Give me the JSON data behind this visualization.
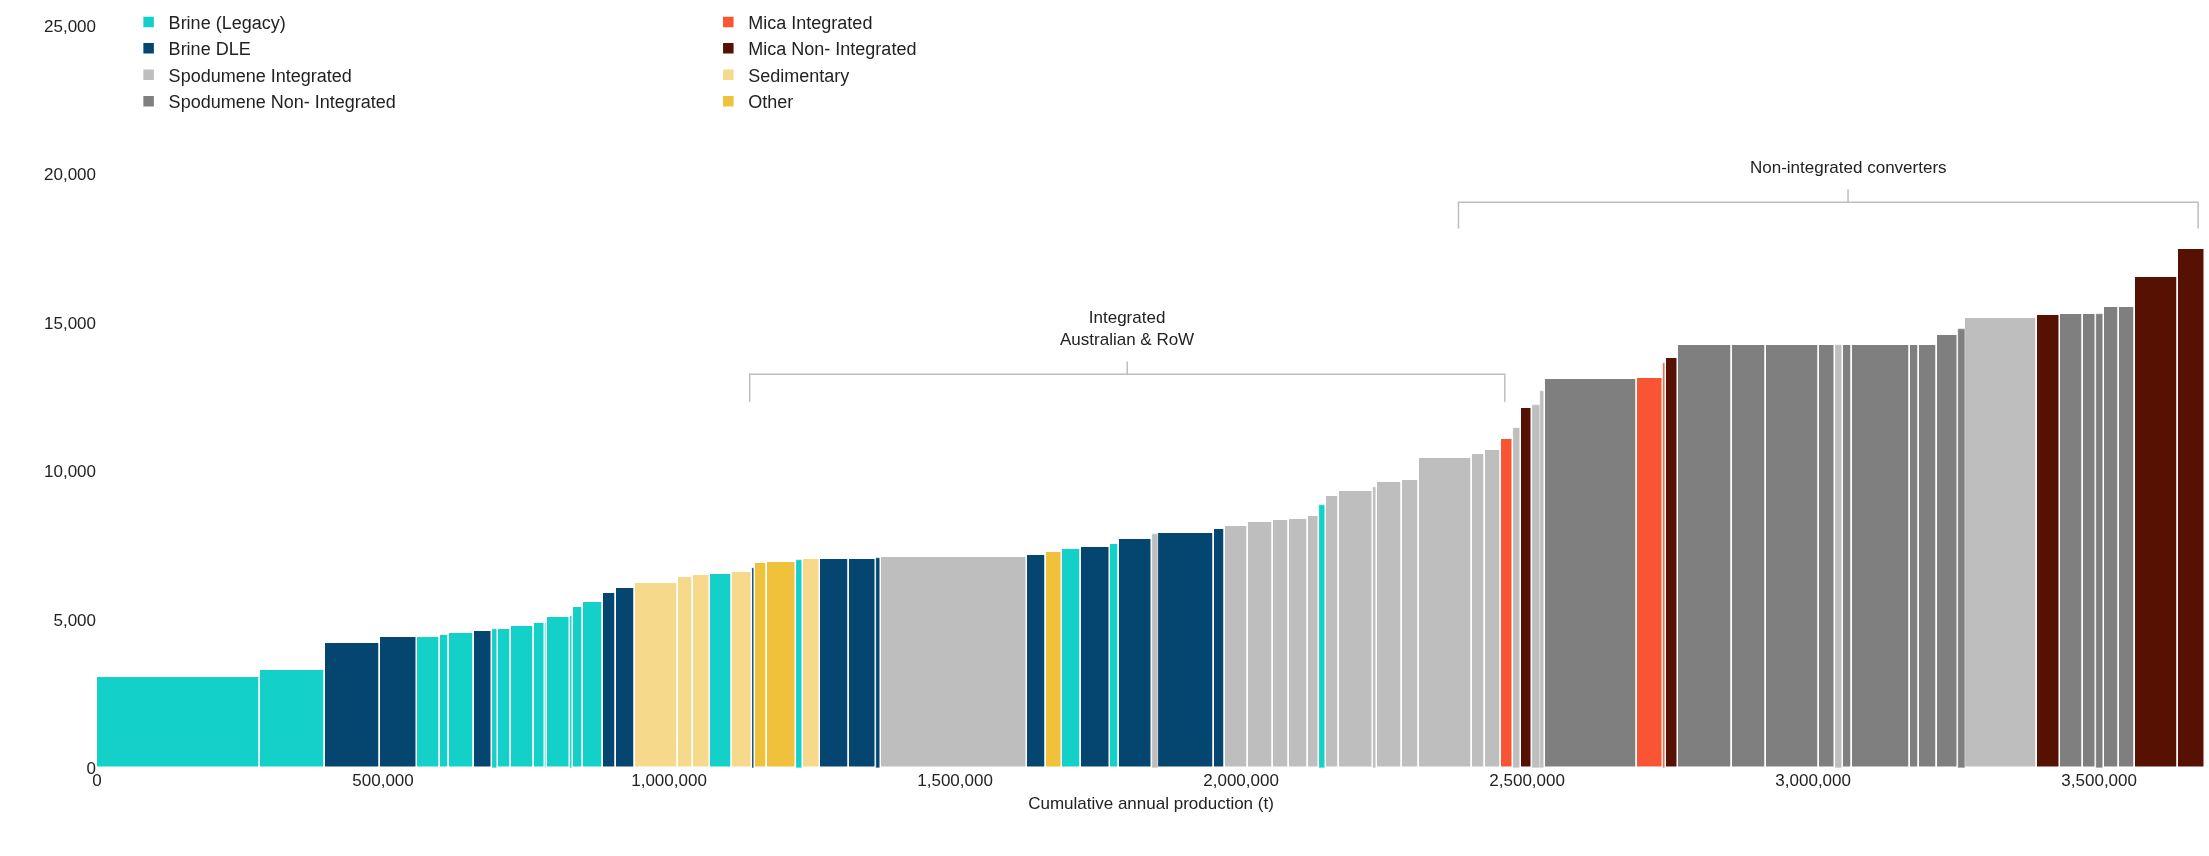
{
  "chart_data": {
    "type": "histogram",
    "xlabel": "Cumulative annual production (t)",
    "bins": [
      0,
      285000,
      398000,
      495000,
      559000,
      600000,
      615000,
      659000,
      691000,
      701000,
      724000,
      764000,
      784000,
      787000,
      827000,
      832000,
      850000,
      885000,
      908000,
      940000,
      1015000,
      1041000,
      1071000,
      1110000,
      1145000,
      1150000,
      1172000,
      1222000,
      1234000,
      1264000,
      1315000,
      1361000,
      1371000,
      1626000,
      1659000,
      1687000,
      1720000,
      1771000,
      1786000,
      1844000,
      1855000,
      1953000,
      1971000,
      2012000,
      2055000,
      2083000,
      2117000,
      2137000,
      2148000,
      2172000,
      2231000,
      2238000,
      2282000,
      2311000,
      2404000,
      2426000,
      2454000,
      2475000,
      2489000,
      2508000,
      2522000,
      2532000,
      2692000,
      2737000,
      2743000,
      2763000,
      2859000,
      2918000,
      3010000,
      3039000,
      3053000,
      3068000,
      3169000,
      3185000,
      3216000,
      3253000,
      3266000,
      3391000,
      3431000,
      3471000,
      3495000,
      3509000,
      3534000,
      3563000,
      3638000,
      3685000
    ],
    "series": [
      {
        "name": "Brine (Legacy)",
        "color": "#13d0c8",
        "values": [
          3050,
          3300,
          null,
          null,
          4430,
          4480,
          4540,
          null,
          4670,
          4700,
          4800,
          4900,
          4900,
          5100,
          5130,
          5430,
          5580,
          null,
          null,
          null,
          null,
          null,
          6550,
          null,
          null,
          null,
          null,
          7000,
          null,
          null,
          null,
          null,
          null,
          null,
          null,
          7390,
          null,
          7540,
          null,
          null,
          null,
          null,
          null,
          null,
          null,
          null,
          null,
          8860,
          null,
          null,
          null,
          null,
          null,
          null,
          null,
          null,
          null,
          null,
          null,
          null,
          null,
          null,
          null,
          null,
          null,
          null,
          null,
          null,
          null,
          null,
          null,
          null,
          null,
          null,
          null,
          null,
          null,
          null,
          null,
          null,
          null,
          null,
          null,
          null,
          null
        ]
      },
      {
        "name": "Brine DLE",
        "color": "#04466f",
        "values": [
          null,
          null,
          4200,
          4400,
          null,
          null,
          null,
          4600,
          null,
          null,
          null,
          null,
          null,
          null,
          null,
          null,
          null,
          5910,
          6080,
          null,
          null,
          null,
          null,
          null,
          6730,
          null,
          null,
          null,
          null,
          7050,
          7050,
          7080,
          null,
          7180,
          null,
          null,
          7430,
          null,
          7720,
          null,
          7920,
          8040,
          null,
          null,
          null,
          null,
          null,
          null,
          null,
          null,
          null,
          null,
          null,
          null,
          null,
          null,
          null,
          null,
          null,
          null,
          null,
          null,
          null,
          null,
          null,
          null,
          null,
          null,
          null,
          null,
          null,
          null,
          null,
          null,
          null,
          null,
          null,
          null,
          null,
          null,
          null,
          null,
          null,
          null,
          null
        ]
      },
      {
        "name": "Spodumene Integrated",
        "color": "#bebebe",
        "values": [
          null,
          null,
          null,
          null,
          null,
          null,
          null,
          null,
          null,
          null,
          null,
          null,
          null,
          null,
          null,
          null,
          null,
          null,
          null,
          null,
          null,
          null,
          null,
          null,
          null,
          null,
          null,
          null,
          null,
          null,
          null,
          null,
          7110,
          null,
          null,
          null,
          null,
          null,
          null,
          7900,
          null,
          null,
          8150,
          8300,
          8340,
          8390,
          8490,
          null,
          9150,
          9330,
          9460,
          9630,
          9700,
          10460,
          10590,
          10730,
          null,
          11440,
          null,
          12220,
          12700,
          null,
          null,
          null,
          null,
          null,
          null,
          null,
          null,
          14250,
          null,
          null,
          null,
          null,
          null,
          null,
          15170,
          null,
          null,
          null,
          null,
          null,
          null,
          null,
          null
        ]
      },
      {
        "name": "Spodumene Non- Integrated",
        "color": "#7f7f7f",
        "values": [
          null,
          null,
          null,
          null,
          null,
          null,
          null,
          null,
          null,
          null,
          null,
          null,
          null,
          null,
          null,
          null,
          null,
          null,
          null,
          null,
          null,
          null,
          null,
          null,
          null,
          null,
          null,
          null,
          null,
          null,
          null,
          null,
          null,
          null,
          null,
          null,
          null,
          null,
          null,
          null,
          null,
          null,
          null,
          null,
          null,
          null,
          null,
          null,
          null,
          null,
          null,
          null,
          null,
          null,
          null,
          null,
          null,
          null,
          null,
          null,
          null,
          13110,
          null,
          null,
          null,
          14250,
          14250,
          14250,
          14250,
          null,
          14250,
          14250,
          14250,
          14250,
          14580,
          14790,
          null,
          null,
          15280,
          15280,
          15280,
          15540,
          15540,
          null,
          null
        ]
      },
      {
        "name": "Mica Integrated",
        "color": "#f95535",
        "values": [
          null,
          null,
          null,
          null,
          null,
          null,
          null,
          null,
          null,
          null,
          null,
          null,
          null,
          null,
          null,
          null,
          null,
          null,
          null,
          null,
          null,
          null,
          null,
          null,
          null,
          null,
          null,
          null,
          null,
          null,
          null,
          null,
          null,
          null,
          null,
          null,
          null,
          null,
          null,
          null,
          null,
          null,
          null,
          null,
          null,
          null,
          null,
          null,
          null,
          null,
          null,
          null,
          null,
          null,
          null,
          null,
          11090,
          null,
          null,
          null,
          null,
          null,
          13140,
          13660,
          null,
          null,
          null,
          null,
          null,
          null,
          null,
          null,
          null,
          null,
          null,
          null,
          null,
          null,
          null,
          null,
          null,
          null,
          null,
          null,
          null
        ]
      },
      {
        "name": "Mica Non- Integrated",
        "color": "#561103",
        "values": [
          null,
          null,
          null,
          null,
          null,
          null,
          null,
          null,
          null,
          null,
          null,
          null,
          null,
          null,
          null,
          null,
          null,
          null,
          null,
          null,
          null,
          null,
          null,
          null,
          null,
          null,
          null,
          null,
          null,
          null,
          null,
          null,
          null,
          null,
          null,
          null,
          null,
          null,
          null,
          null,
          null,
          null,
          null,
          null,
          null,
          null,
          null,
          null,
          null,
          null,
          null,
          null,
          null,
          null,
          null,
          null,
          null,
          null,
          12140,
          null,
          null,
          null,
          null,
          null,
          13830,
          null,
          null,
          null,
          null,
          null,
          null,
          null,
          null,
          null,
          null,
          null,
          null,
          15260,
          null,
          null,
          null,
          null,
          null,
          16530,
          17480
        ]
      },
      {
        "name": "Sedimentary",
        "color": "#f6d98a",
        "values": [
          null,
          null,
          null,
          null,
          null,
          null,
          null,
          null,
          null,
          null,
          null,
          null,
          null,
          null,
          null,
          null,
          null,
          null,
          null,
          6230,
          6420,
          6490,
          null,
          6620,
          null,
          null,
          null,
          null,
          7030,
          null,
          null,
          null,
          null,
          null,
          null,
          null,
          null,
          null,
          null,
          null,
          null,
          null,
          null,
          null,
          null,
          null,
          null,
          null,
          null,
          null,
          null,
          null,
          null,
          null,
          null,
          null,
          null,
          null,
          null,
          null,
          null,
          null,
          null,
          null,
          null,
          null,
          null,
          null,
          null,
          null,
          null,
          null,
          null,
          null,
          null,
          null,
          null,
          null,
          null,
          null,
          null,
          null,
          null,
          null,
          null
        ]
      },
      {
        "type": "line",
        "color": "#bdbdbd",
        "x": [
          1141000,
          1141000,
          1801000,
          1801000,
          1801000,
          2461000,
          2461000
        ],
        "values": [
          12330,
          13270,
          13270,
          13700,
          13270,
          13270,
          12330
        ]
      },
      {
        "type": "line",
        "color": "#bdbdbd",
        "x": [
          2380000,
          2380000,
          3061000,
          3061000,
          3061000,
          3673000,
          3673000
        ],
        "values": [
          18180,
          19060,
          19060,
          19500,
          19060,
          19060,
          18180
        ]
      },
      {
        "name": "Other",
        "color": "#f0c23c",
        "values": [
          null,
          null,
          null,
          null,
          null,
          null,
          null,
          null,
          null,
          null,
          null,
          null,
          null,
          null,
          null,
          null,
          null,
          null,
          null,
          null,
          null,
          null,
          null,
          null,
          null,
          6900,
          6930,
          null,
          null,
          null,
          null,
          null,
          null,
          null,
          7280,
          null,
          null,
          null,
          null,
          null,
          null,
          null,
          null,
          null,
          null,
          null,
          null,
          null,
          null,
          null,
          null,
          null,
          null,
          null,
          null,
          null,
          null,
          null,
          null,
          null,
          null,
          null,
          null,
          null,
          null,
          null,
          null,
          null,
          null,
          null,
          null,
          null,
          null,
          null,
          null,
          null,
          null,
          null,
          null,
          null,
          null,
          null,
          null,
          null,
          null
        ]
      }
    ],
    "xlim": [
      0,
      3685000
    ],
    "xticks": [
      0,
      {
        "value": 500000,
        "label": "500,000"
      },
      {
        "value": 1000000,
        "label": "1,000,000"
      },
      {
        "value": 1500000,
        "label": "1,500,000"
      },
      {
        "value": 2000000,
        "label": "2,000,000"
      },
      {
        "value": 2500000,
        "label": "2,500,000"
      },
      {
        "value": 3000000,
        "label": "3,000,000"
      },
      {
        "value": 3500000,
        "label": "3,500,000"
      }
    ],
    "ylim": [
      0,
      25000
    ],
    "yticks": [
      0,
      {
        "value": 5000,
        "label": "5,000"
      },
      {
        "value": 10000,
        "label": "10,000"
      },
      {
        "value": 15000,
        "label": "15,000"
      },
      {
        "value": 20000,
        "label": "20,000"
      },
      {
        "value": 25000,
        "label": "25,000"
      }
    ],
    "annotations": [
      "Integrated\nAustralian & RoW",
      "Non-integrated converters"
    ],
    "legend": "top left"
  }
}
